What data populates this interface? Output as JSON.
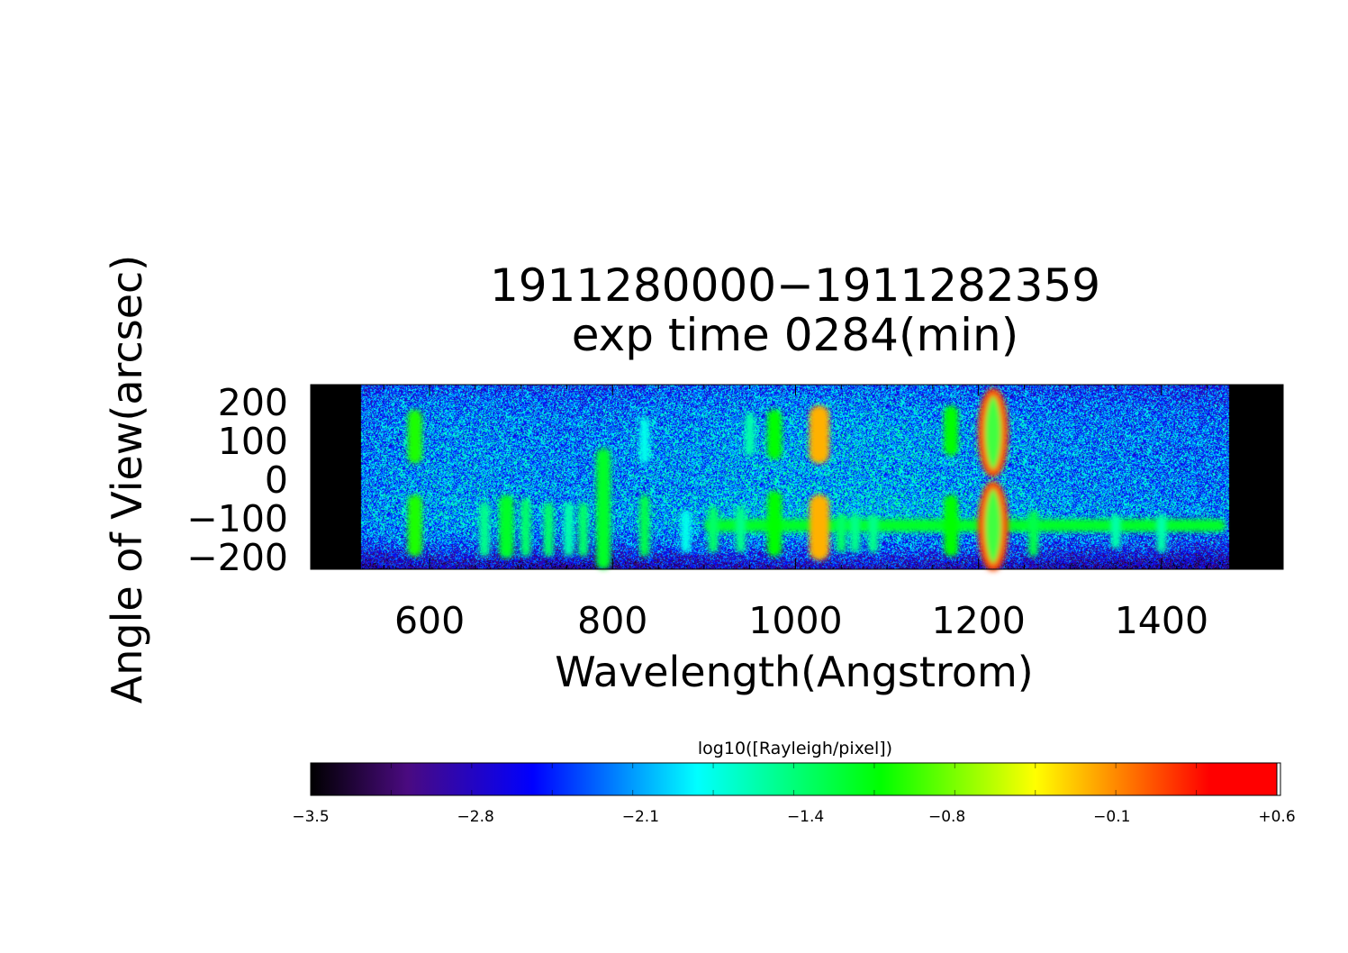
{
  "chart_data": {
    "type": "heatmap",
    "title": "1911280000−1911282359",
    "subtitle": "exp time 0284(min)",
    "xlabel": "Wavelength(Angstrom)",
    "ylabel": "Angle of View(arcsec)",
    "xlim": [
      470,
      1533
    ],
    "ylim": [
      -233,
      244
    ],
    "data_extent_x": [
      525,
      1473
    ],
    "x_ticks": [
      600,
      800,
      1000,
      1200,
      1400
    ],
    "x_tick_labels": [
      "600",
      "800",
      "1000",
      "1200",
      "1400"
    ],
    "y_ticks": [
      200,
      100,
      0,
      -100,
      -200
    ],
    "y_tick_labels": [
      "200",
      "100",
      "0",
      "−100",
      "−200"
    ],
    "grid": false,
    "background_level": -2.3,
    "colorbar": {
      "label": "log10([Rayleigh/pixel])",
      "range": [
        -3.5,
        0.6
      ],
      "placement": "bottom",
      "ticks": [
        -3.5,
        -2.8,
        -2.1,
        -1.4,
        -0.8,
        -0.1,
        0.6
      ],
      "tick_labels": [
        "−3.5",
        "−2.8",
        "−2.1",
        "−1.4",
        "−0.8",
        "−0.1",
        "+0.6"
      ],
      "colormap": [
        "#000000",
        "#5a0aa0",
        "#0000ff",
        "#00ffff",
        "#00ff00",
        "#ffff00",
        "#ff0000"
      ]
    },
    "features": [
      {
        "wavelength": 584,
        "y_range": [
          40,
          180
        ],
        "value": -1.0
      },
      {
        "wavelength": 584,
        "y_range": [
          -200,
          -40
        ],
        "value": -1.0
      },
      {
        "wavelength": 660,
        "y_range": [
          -200,
          -60
        ],
        "value": -1.5
      },
      {
        "wavelength": 684,
        "y_range": [
          -205,
          -40
        ],
        "value": -1.2
      },
      {
        "wavelength": 705,
        "y_range": [
          -200,
          -50
        ],
        "value": -1.4
      },
      {
        "wavelength": 730,
        "y_range": [
          -200,
          -60
        ],
        "value": -1.4
      },
      {
        "wavelength": 752,
        "y_range": [
          -200,
          -60
        ],
        "value": -1.6
      },
      {
        "wavelength": 768,
        "y_range": [
          -200,
          -60
        ],
        "value": -1.4
      },
      {
        "wavelength": 790,
        "y_range": [
          -233,
          80
        ],
        "value": -1.2
      },
      {
        "wavelength": 835,
        "y_range": [
          -200,
          -40
        ],
        "value": -1.3
      },
      {
        "wavelength": 835,
        "y_range": [
          40,
          160
        ],
        "value": -1.8
      },
      {
        "wavelength": 880,
        "y_range": [
          -190,
          -80
        ],
        "value": -1.8
      },
      {
        "wavelength": 910,
        "y_range": [
          -190,
          -70
        ],
        "value": -1.4
      },
      {
        "wavelength": 940,
        "y_range": [
          -190,
          -70
        ],
        "value": -1.5
      },
      {
        "wavelength": 950,
        "y_range": [
          60,
          170
        ],
        "value": -1.6
      },
      {
        "wavelength": 977,
        "y_range": [
          50,
          180
        ],
        "value": -1.1
      },
      {
        "wavelength": 977,
        "y_range": [
          -200,
          -30
        ],
        "value": -1.1
      },
      {
        "wavelength": 1026,
        "y_range": [
          40,
          190
        ],
        "value": -0.2
      },
      {
        "wavelength": 1026,
        "y_range": [
          -210,
          -40
        ],
        "value": -0.2
      },
      {
        "wavelength": 1050,
        "y_range": [
          -190,
          -90
        ],
        "value": -1.4
      },
      {
        "wavelength": 1065,
        "y_range": [
          -190,
          -90
        ],
        "value": -1.5
      },
      {
        "wavelength": 1085,
        "y_range": [
          -190,
          -90
        ],
        "value": -1.5
      },
      {
        "wavelength": 1170,
        "y_range": [
          60,
          190
        ],
        "value": -1.1
      },
      {
        "wavelength": 1170,
        "y_range": [
          -200,
          -40
        ],
        "value": -1.1
      },
      {
        "wavelength": 1216,
        "y_range": [
          10,
          230
        ],
        "value": 0.1,
        "shape": "ring"
      },
      {
        "wavelength": 1216,
        "y_range": [
          -233,
          -10
        ],
        "value": 0.1,
        "shape": "ring"
      },
      {
        "wavelength": 1260,
        "y_range": [
          -200,
          -80
        ],
        "value": -1.3
      },
      {
        "wavelength": 1350,
        "y_range": [
          -180,
          -90
        ],
        "value": -1.6
      },
      {
        "wavelength": 1400,
        "y_range": [
          -190,
          -90
        ],
        "value": -1.6
      }
    ],
    "horizontal_band": {
      "y": -120,
      "wavelength_range": [
        900,
        1470
      ],
      "value": -1.2
    }
  }
}
